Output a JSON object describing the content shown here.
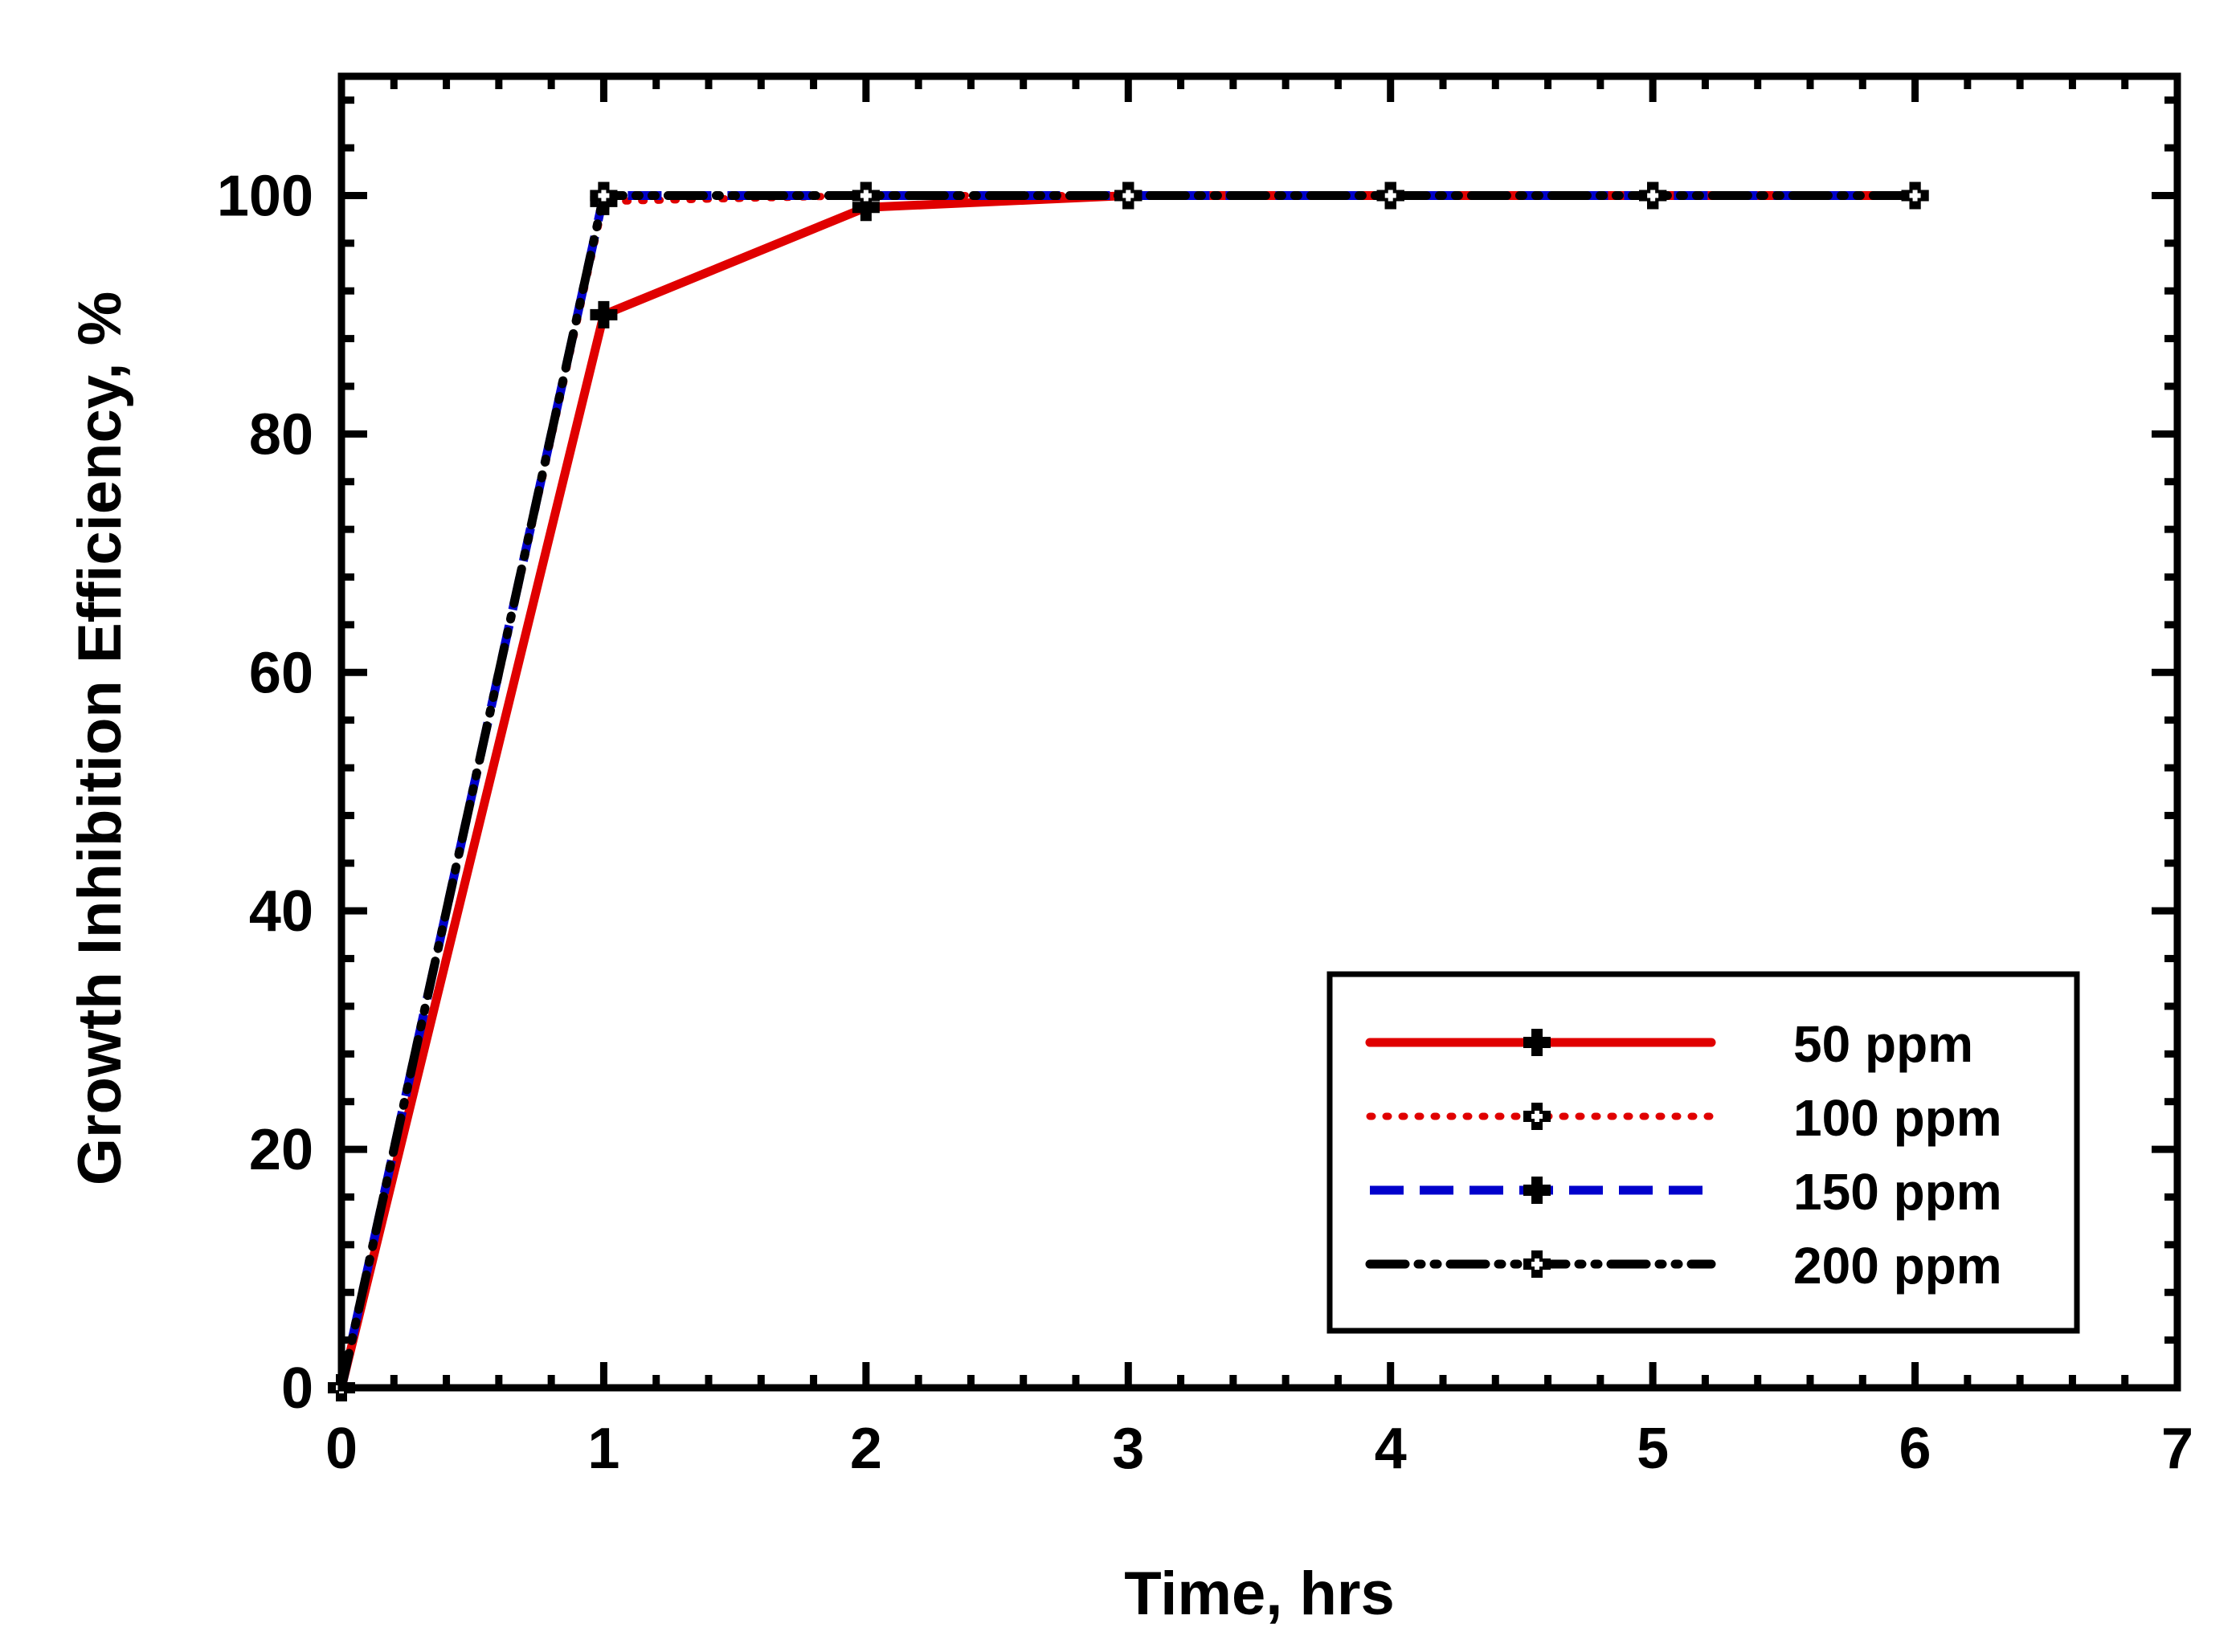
{
  "chart_data": {
    "type": "line",
    "title": "",
    "xlabel": "Time, hrs",
    "ylabel": "Growth Inhibition Efficiency, %",
    "xlim": [
      0,
      7
    ],
    "ylim": [
      0,
      110
    ],
    "xticks": [
      0,
      1,
      2,
      3,
      4,
      5,
      6,
      7
    ],
    "yticks": [
      0,
      20,
      40,
      60,
      80,
      100
    ],
    "xtick_labels": [
      "0",
      "1",
      "2",
      "3",
      "4",
      "5",
      "6",
      "7"
    ],
    "ytick_labels": [
      "0",
      "20",
      "40",
      "60",
      "80",
      "100"
    ],
    "grid": false,
    "legend_position": "bottom-right",
    "x": [
      0,
      1,
      2,
      3,
      4,
      5,
      6
    ],
    "series": [
      {
        "name": "50 ppm",
        "values": [
          0,
          90,
          99,
          100,
          100,
          100,
          100
        ],
        "color": "#e00000",
        "line": "solid",
        "marker": "filled-cross"
      },
      {
        "name": "100 ppm",
        "values": [
          0,
          99.5,
          100,
          100,
          100,
          100,
          100
        ],
        "color": "#e00000",
        "line": "dotted",
        "marker": "open-cross"
      },
      {
        "name": "150 ppm",
        "values": [
          0,
          100,
          100,
          100,
          100,
          100,
          100
        ],
        "color": "#0000cc",
        "line": "dashed",
        "marker": "filled-cross"
      },
      {
        "name": "200 ppm",
        "values": [
          0,
          100,
          100,
          100,
          100,
          100,
          100
        ],
        "color": "#000000",
        "line": "dash-dot-dot",
        "marker": "open-cross"
      }
    ]
  }
}
